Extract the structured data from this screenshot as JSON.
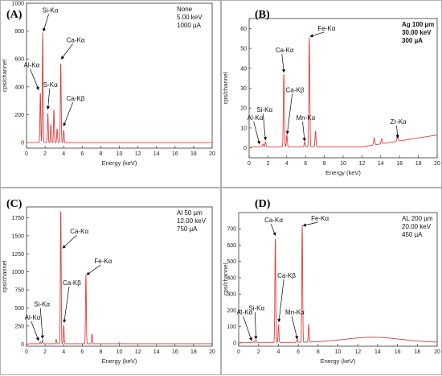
{
  "chart_data": [
    {
      "panel_label": "(A)",
      "type": "line",
      "info_lines": [
        "None",
        "5.00 keV",
        "1000 µA"
      ],
      "info_bold": false,
      "xlabel": "Energy (keV)",
      "ylabel": "cps/channel",
      "xlim": [
        0,
        20
      ],
      "ylim": [
        -40,
        1000
      ],
      "xticks": [
        0,
        2,
        4,
        6,
        8,
        10,
        12,
        14,
        16,
        18,
        20
      ],
      "yticks": [
        0,
        200,
        400,
        600,
        800,
        1000
      ],
      "baseline": 0,
      "peaks": [
        {
          "x": 1.49,
          "y": 360,
          "w": 0.06
        },
        {
          "x": 1.74,
          "y": 790,
          "w": 0.06
        },
        {
          "x": 2.3,
          "y": 210,
          "w": 0.06
        },
        {
          "x": 2.62,
          "y": 130,
          "w": 0.06
        },
        {
          "x": 2.95,
          "y": 240,
          "w": 0.06
        },
        {
          "x": 3.3,
          "y": 100,
          "w": 0.06
        },
        {
          "x": 3.69,
          "y": 580,
          "w": 0.06
        },
        {
          "x": 4.01,
          "y": 90,
          "w": 0.06
        }
      ],
      "annotations": [
        {
          "text": "Si-Kα",
          "tx": 1.7,
          "ty": 935,
          "ax": 1.82,
          "ay": 800
        },
        {
          "text": "Ca-Kα",
          "tx": 4.3,
          "ty": 720,
          "ax": 3.75,
          "ay": 600
        },
        {
          "text": "Al-Kα",
          "tx": -0.3,
          "ty": 540,
          "ax": 1.3,
          "ay": 380
        },
        {
          "text": "S-Kα",
          "tx": 1.8,
          "ty": 400,
          "ax": 2.3,
          "ay": 240
        },
        {
          "text": "Ca-Kβ",
          "tx": 4.3,
          "ty": 300,
          "ax": 4.0,
          "ay": 120
        }
      ]
    },
    {
      "panel_label": "(B)",
      "type": "line",
      "info_lines": [
        "Ag 100 µm",
        "30.00 keV",
        "300 µA"
      ],
      "info_bold": true,
      "xlabel": "Energy (keV)",
      "ylabel": "cps/channel",
      "xlim": [
        0,
        20
      ],
      "ylim": [
        -5,
        65
      ],
      "xticks": [
        0,
        2,
        4,
        6,
        8,
        10,
        12,
        14,
        16,
        18,
        20
      ],
      "yticks": [
        0,
        10,
        20,
        30,
        40,
        50,
        60
      ],
      "baseline": 0.5,
      "slope": {
        "from": 12,
        "to": 20,
        "ymax": 6.5
      },
      "peaks": [
        {
          "x": 1.49,
          "y": 1.5,
          "w": 0.07
        },
        {
          "x": 1.74,
          "y": 2.5,
          "w": 0.07
        },
        {
          "x": 3.69,
          "y": 37,
          "w": 0.07
        },
        {
          "x": 4.01,
          "y": 6,
          "w": 0.07
        },
        {
          "x": 5.9,
          "y": 2.5,
          "w": 0.07
        },
        {
          "x": 6.4,
          "y": 55,
          "w": 0.07
        },
        {
          "x": 7.06,
          "y": 8,
          "w": 0.07
        },
        {
          "x": 13.3,
          "y": 3.5,
          "w": 0.09
        },
        {
          "x": 14.1,
          "y": 2.5,
          "w": 0.09
        },
        {
          "x": 15.8,
          "y": 3.5,
          "w": 0.09
        }
      ],
      "annotations": [
        {
          "text": "Fe-Kα",
          "tx": 7.3,
          "ty": 59,
          "ax": 6.5,
          "ay": 56
        },
        {
          "text": "Ca-Kα",
          "tx": 2.8,
          "ty": 48,
          "ax": 3.7,
          "ay": 38
        },
        {
          "text": "Ca-Kβ",
          "tx": 3.9,
          "ty": 28,
          "ax": 4.05,
          "ay": 7
        },
        {
          "text": "Si-Kα",
          "tx": 0.8,
          "ty": 18,
          "ax": 1.74,
          "ay": 4
        },
        {
          "text": "Al-Kα",
          "tx": -0.2,
          "ty": 14,
          "ax": 1.1,
          "ay": 2
        },
        {
          "text": "Mn-Kα",
          "tx": 5.0,
          "ty": 14,
          "ax": 5.9,
          "ay": 3.5
        },
        {
          "text": "Zr-Kα",
          "tx": 15.0,
          "ty": 12,
          "ax": 15.8,
          "ay": 5
        }
      ]
    },
    {
      "panel_label": "(C)",
      "type": "line",
      "info_lines": [
        "Al 50 µm",
        "12.00 keV",
        "750 µA"
      ],
      "info_bold": false,
      "xlabel": "Energy (keV)",
      "ylabel": "cps/channel",
      "xlim": [
        0,
        20
      ],
      "ylim": [
        -30,
        1900
      ],
      "xticks": [
        0,
        2,
        4,
        6,
        8,
        10,
        12,
        14,
        16,
        18,
        20
      ],
      "yticks": [
        0,
        250,
        500,
        750,
        1000,
        1250,
        1500,
        1750
      ],
      "baseline": 4,
      "peaks": [
        {
          "x": 1.49,
          "y": 30,
          "w": 0.06
        },
        {
          "x": 1.74,
          "y": 55,
          "w": 0.06
        },
        {
          "x": 3.2,
          "y": 60,
          "w": 0.06
        },
        {
          "x": 3.69,
          "y": 1880,
          "w": 0.06
        },
        {
          "x": 4.01,
          "y": 260,
          "w": 0.06
        },
        {
          "x": 6.4,
          "y": 960,
          "w": 0.06
        },
        {
          "x": 7.06,
          "y": 140,
          "w": 0.06
        },
        {
          "x": 10.0,
          "y": 15,
          "w": 0.06
        }
      ],
      "annotations": [
        {
          "text": "Ca-Kα",
          "tx": 4.7,
          "ty": 1530,
          "ax": 3.9,
          "ay": 1330
        },
        {
          "text": "Ca-Kβ",
          "tx": 3.9,
          "ty": 820,
          "ax": 4.05,
          "ay": 300
        },
        {
          "text": "Fe-Kα",
          "tx": 7.3,
          "ty": 1120,
          "ax": 6.5,
          "ay": 960
        },
        {
          "text": "Si-Kα",
          "tx": 0.8,
          "ty": 520,
          "ax": 1.74,
          "ay": 80
        },
        {
          "text": "Al-Kα",
          "tx": -0.2,
          "ty": 340,
          "ax": 1.3,
          "ay": 50
        }
      ]
    },
    {
      "panel_label": "(D)",
      "type": "line",
      "info_lines": [
        "AL 200 µm",
        "20.00 keV",
        "450 µA"
      ],
      "info_bold": false,
      "xlabel": "Energy (keV)",
      "ylabel": "cps/channel",
      "xlim": [
        0,
        20
      ],
      "ylim": [
        -20,
        800
      ],
      "xticks": [
        0,
        2,
        4,
        6,
        8,
        10,
        12,
        14,
        16,
        18,
        20
      ],
      "yticks": [
        0,
        100,
        200,
        300,
        400,
        500,
        600,
        700
      ],
      "baseline": 3,
      "hump": {
        "x": 13.5,
        "y": 32,
        "w": 4
      },
      "peaks": [
        {
          "x": 1.49,
          "y": 6,
          "w": 0.06
        },
        {
          "x": 1.74,
          "y": 14,
          "w": 0.06
        },
        {
          "x": 3.69,
          "y": 650,
          "w": 0.06
        },
        {
          "x": 4.01,
          "y": 110,
          "w": 0.06
        },
        {
          "x": 5.9,
          "y": 18,
          "w": 0.06
        },
        {
          "x": 6.4,
          "y": 720,
          "w": 0.06
        },
        {
          "x": 7.06,
          "y": 110,
          "w": 0.06
        }
      ],
      "annotations": [
        {
          "text": "Ca-Kα",
          "tx": 2.6,
          "ty": 740,
          "ax": 3.7,
          "ay": 660
        },
        {
          "text": "Fe-Kα",
          "tx": 7.3,
          "ty": 750,
          "ax": 6.5,
          "ay": 720
        },
        {
          "text": "Ca-Kβ",
          "tx": 3.9,
          "ty": 400,
          "ax": 4.05,
          "ay": 130
        },
        {
          "text": "Si-Kα",
          "tx": 1.0,
          "ty": 200,
          "ax": 1.74,
          "ay": 25
        },
        {
          "text": "Al-Kα",
          "tx": -0.2,
          "ty": 175,
          "ax": 1.3,
          "ay": 15
        },
        {
          "text": "Mn-Kα",
          "tx": 4.7,
          "ty": 175,
          "ax": 5.9,
          "ay": 25
        }
      ]
    }
  ],
  "colors": {
    "spectrum": "#e23a3a",
    "axis": "#333333",
    "arrow": "#000000"
  }
}
